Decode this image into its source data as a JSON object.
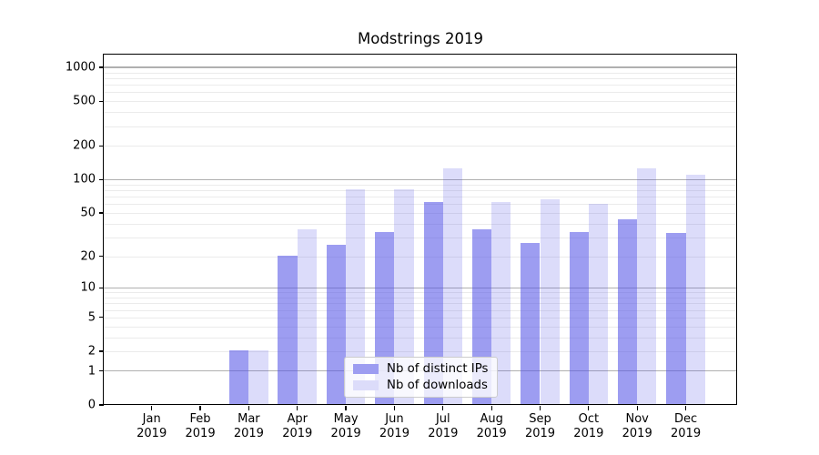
{
  "chart_data": {
    "type": "bar",
    "title": "Modstrings 2019",
    "categories": [
      "Jan 2019",
      "Feb 2019",
      "Mar 2019",
      "Apr 2019",
      "May 2019",
      "Jun 2019",
      "Jul 2019",
      "Aug 2019",
      "Sep 2019",
      "Oct 2019",
      "Nov 2019",
      "Dec 2019"
    ],
    "series": [
      {
        "name": "Nb of distinct IPs",
        "color": "#9d9df1",
        "fill_rgba": "rgba(80,80,230,0.56)",
        "values": [
          0,
          0,
          2,
          20,
          25,
          33,
          61,
          35,
          26,
          33,
          43,
          32
        ]
      },
      {
        "name": "Nb of downloads",
        "color": "#dcdcfa",
        "fill_rgba": "rgba(80,80,230,0.20)",
        "values": [
          0,
          0,
          2,
          35,
          80,
          80,
          124,
          61,
          65,
          59,
          124,
          108
        ]
      }
    ],
    "xlabel": "",
    "ylabel": "",
    "yscale": "log1p",
    "ylim": [
      0,
      1300
    ],
    "ytick_values": [
      0,
      1,
      2,
      5,
      10,
      20,
      50,
      100,
      200,
      500,
      1000
    ],
    "ytick_labels": [
      "0",
      "1",
      "2",
      "5",
      "10",
      "20",
      "50",
      "100",
      "200",
      "500",
      "1000"
    ],
    "major_grid_values": [
      1,
      10,
      100,
      1000
    ],
    "minor_grid_values": [
      2,
      3,
      4,
      5,
      6,
      7,
      8,
      9,
      20,
      30,
      40,
      50,
      60,
      70,
      80,
      90,
      200,
      300,
      400,
      500,
      600,
      700,
      800,
      900
    ],
    "grid": "on",
    "legend_position": "lower-center-inside",
    "colors": {
      "bar_dark": "#9d9df1",
      "bar_light": "#dcdcfa",
      "grid_major": "#b0b0b0",
      "grid_minor": "#ebebeb",
      "axis": "#000000",
      "background": "#ffffff"
    }
  }
}
